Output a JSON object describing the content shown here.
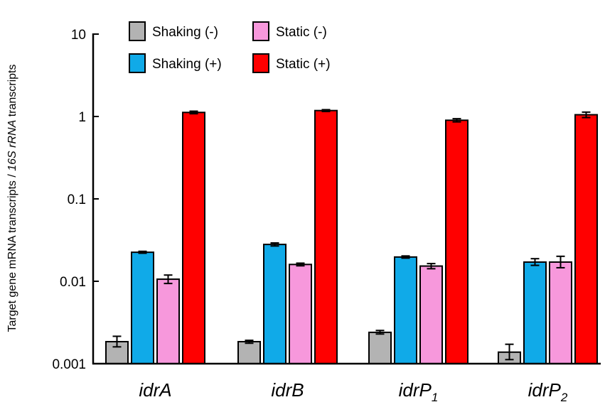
{
  "chart_data": {
    "type": "bar",
    "yscale": "log",
    "ylim": [
      0.001,
      10
    ],
    "yticks": [
      {
        "value": 10,
        "label": "10"
      },
      {
        "value": 1,
        "label": "1"
      },
      {
        "value": 0.1,
        "label": "0.1"
      },
      {
        "value": 0.01,
        "label": "0.01"
      },
      {
        "value": 0.001,
        "label": "0.001"
      }
    ],
    "ylabel": {
      "part1": "Target gene mRNA transcripts / ",
      "part2": "16S rRNA",
      "part3": " transcripts"
    },
    "xlabel": "",
    "categories": [
      {
        "base": "idrA",
        "sub": ""
      },
      {
        "base": "idrB",
        "sub": ""
      },
      {
        "base": "idrP",
        "sub": "1"
      },
      {
        "base": "idrP",
        "sub": "2"
      }
    ],
    "series": [
      {
        "name": "Shaking (-)",
        "color": "#b3b3b3",
        "values": [
          0.00185,
          0.00185,
          0.0024,
          0.00138
        ],
        "err_low": [
          0.0016,
          0.00177,
          0.00229,
          0.00112
        ],
        "err_high": [
          0.00215,
          0.00192,
          0.00253,
          0.00172
        ]
      },
      {
        "name": "Shaking (+)",
        "color": "#10aae8",
        "values": [
          0.0225,
          0.028,
          0.0197,
          0.0171
        ],
        "err_low": [
          0.0219,
          0.0268,
          0.0191,
          0.0156
        ],
        "err_high": [
          0.0231,
          0.0292,
          0.0203,
          0.0188
        ]
      },
      {
        "name": "Static (-)",
        "color": "#f798dc",
        "values": [
          0.0106,
          0.016,
          0.0153,
          0.0171
        ],
        "err_low": [
          0.0094,
          0.0154,
          0.0142,
          0.0146
        ],
        "err_high": [
          0.0119,
          0.0166,
          0.0164,
          0.0201
        ]
      },
      {
        "name": "Static (+)",
        "color": "#ff0000",
        "values": [
          1.12,
          1.18,
          0.9,
          1.05
        ],
        "err_low": [
          1.08,
          1.15,
          0.86,
          0.97
        ],
        "err_high": [
          1.16,
          1.21,
          0.94,
          1.13
        ]
      }
    ],
    "legend": {
      "position": "top-left",
      "order": [
        0,
        2,
        1,
        3
      ]
    }
  }
}
